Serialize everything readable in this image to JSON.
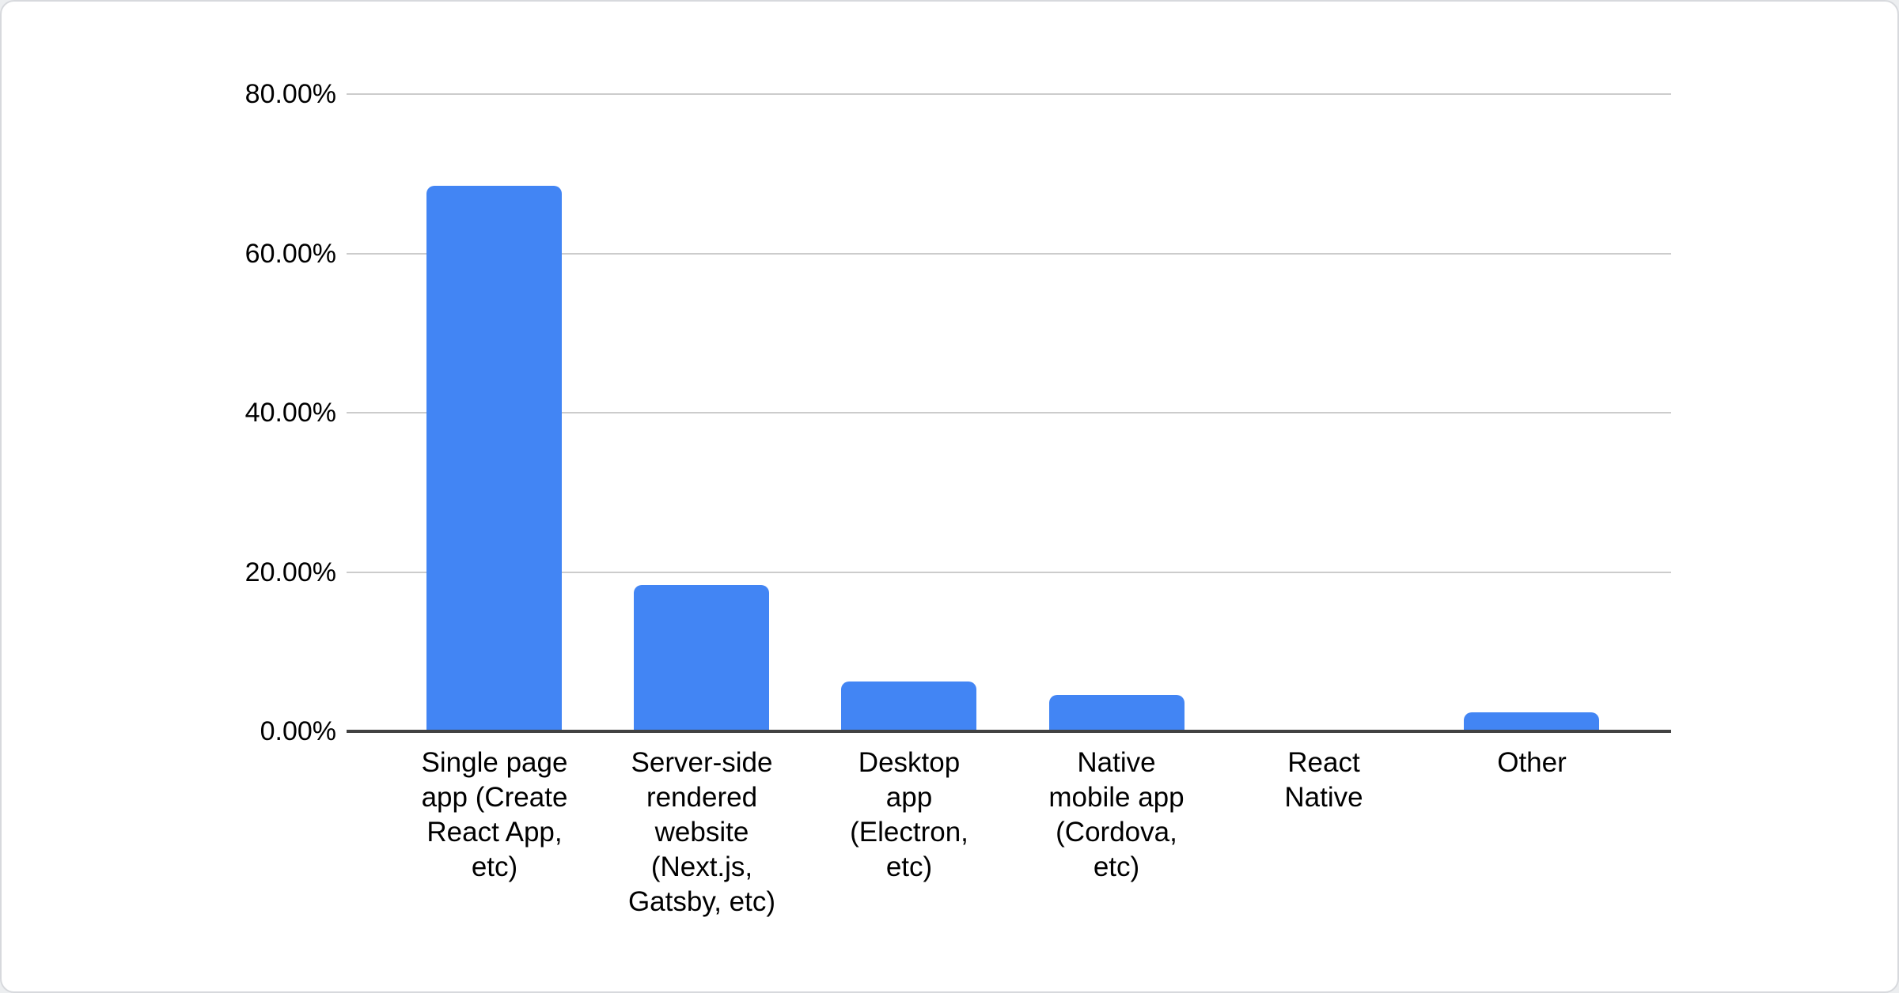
{
  "chart_data": {
    "type": "bar",
    "title": "",
    "xlabel": "",
    "ylabel": "",
    "categories": [
      "Single page app (Create React App, etc)",
      "Server-side rendered website (Next.js, Gatsby, etc)",
      "Desktop app (Electron, etc)",
      "Native mobile app (Cordova, etc)",
      "React Native",
      "Other"
    ],
    "category_label_lines": [
      [
        "Single page",
        "app (Create",
        "React App,",
        "etc)"
      ],
      [
        "Server-side",
        "rendered",
        "website",
        "(Next.js,",
        "Gatsby, etc)"
      ],
      [
        "Desktop",
        "app",
        "(Electron,",
        "etc)"
      ],
      [
        "Native",
        "mobile app",
        "(Cordova,",
        "etc)"
      ],
      [
        "React",
        "Native"
      ],
      [
        "Other"
      ]
    ],
    "values": [
      68.5,
      18.4,
      6.3,
      4.6,
      0,
      2.4
    ],
    "value_unit": "%",
    "ylim": [
      0,
      80
    ],
    "yticks": [
      {
        "value": 80,
        "label": "80.00%"
      },
      {
        "value": 60,
        "label": "60.00%"
      },
      {
        "value": 40,
        "label": "40.00%"
      },
      {
        "value": 20,
        "label": "20.00%"
      },
      {
        "value": 0,
        "label": "0.00%"
      }
    ],
    "grid": true,
    "legend_position": "none"
  },
  "colors": {
    "bar": "#4285f4",
    "axis": "#424242",
    "gridline": "#cccccc",
    "text": "#000000",
    "card_background": "#ffffff",
    "card_border": "#d7d9dd"
  }
}
